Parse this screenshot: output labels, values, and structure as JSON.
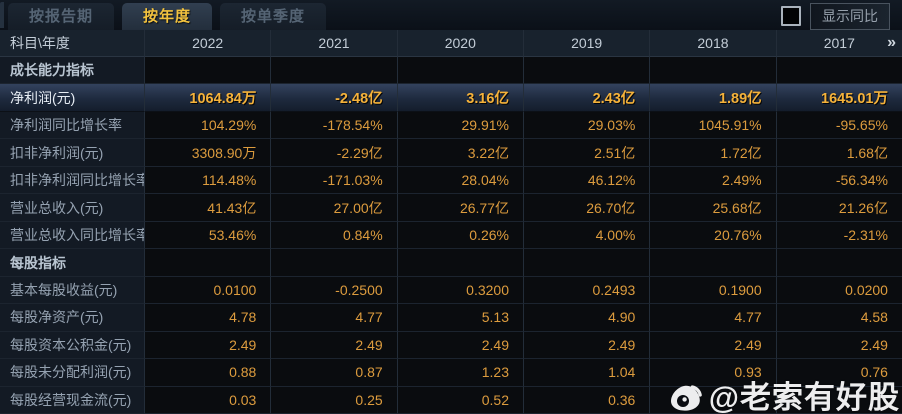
{
  "tabs": [
    {
      "label": "按报告期",
      "active": false
    },
    {
      "label": "按年度",
      "active": true
    },
    {
      "label": "按单季度",
      "active": false
    }
  ],
  "controls": {
    "show_yoy_checkbox_checked": false,
    "show_yoy_label": "显示同比"
  },
  "table": {
    "corner_header": "科目\\年度",
    "year_headers": [
      "2022",
      "2021",
      "2020",
      "2019",
      "2018",
      "2017"
    ],
    "more_years_icon": "»",
    "rows": [
      {
        "type": "section",
        "label": "成长能力指标",
        "values": [
          "",
          "",
          "",
          "",
          "",
          ""
        ]
      },
      {
        "type": "highlight",
        "label": "净利润(元)",
        "values": [
          "1064.84万",
          "-2.48亿",
          "3.16亿",
          "2.43亿",
          "1.89亿",
          "1645.01万"
        ]
      },
      {
        "type": "data",
        "label": "净利润同比增长率",
        "values": [
          "104.29%",
          "-178.54%",
          "29.91%",
          "29.03%",
          "1045.91%",
          "-95.65%"
        ]
      },
      {
        "type": "data",
        "label": "扣非净利润(元)",
        "values": [
          "3308.90万",
          "-2.29亿",
          "3.22亿",
          "2.51亿",
          "1.72亿",
          "1.68亿"
        ]
      },
      {
        "type": "data",
        "label": "扣非净利润同比增长率",
        "values": [
          "114.48%",
          "-171.03%",
          "28.04%",
          "46.12%",
          "2.49%",
          "-56.34%"
        ]
      },
      {
        "type": "data",
        "label": "营业总收入(元)",
        "values": [
          "41.43亿",
          "27.00亿",
          "26.77亿",
          "26.70亿",
          "25.68亿",
          "21.26亿"
        ]
      },
      {
        "type": "data",
        "label": "营业总收入同比增长率",
        "values": [
          "53.46%",
          "0.84%",
          "0.26%",
          "4.00%",
          "20.76%",
          "-2.31%"
        ]
      },
      {
        "type": "section",
        "label": "每股指标",
        "values": [
          "",
          "",
          "",
          "",
          "",
          ""
        ]
      },
      {
        "type": "data",
        "label": "基本每股收益(元)",
        "values": [
          "0.0100",
          "-0.2500",
          "0.3200",
          "0.2493",
          "0.1900",
          "0.0200"
        ]
      },
      {
        "type": "data",
        "label": "每股净资产(元)",
        "values": [
          "4.78",
          "4.77",
          "5.13",
          "4.90",
          "4.77",
          "4.58"
        ]
      },
      {
        "type": "data",
        "label": "每股资本公积金(元)",
        "values": [
          "2.49",
          "2.49",
          "2.49",
          "2.49",
          "2.49",
          "2.49"
        ]
      },
      {
        "type": "data",
        "label": "每股未分配利润(元)",
        "values": [
          "0.88",
          "0.87",
          "1.23",
          "1.04",
          "0.93",
          "0.76"
        ]
      },
      {
        "type": "data",
        "label": "每股经营现金流(元)",
        "values": [
          "0.03",
          "0.25",
          "0.52",
          "0.36",
          "",
          ""
        ]
      }
    ]
  },
  "watermark": {
    "icon": "weibo-icon",
    "text": "@老索有好股"
  },
  "colors": {
    "background": "#0a0d12",
    "value_gold": "#dd9c3e",
    "highlight_gold": "#f5b23a",
    "active_tab_text": "#f2c23e",
    "header_bg": "#18222d",
    "label_col_bg": "#131a24",
    "highlight_row_top": "#33425d"
  }
}
